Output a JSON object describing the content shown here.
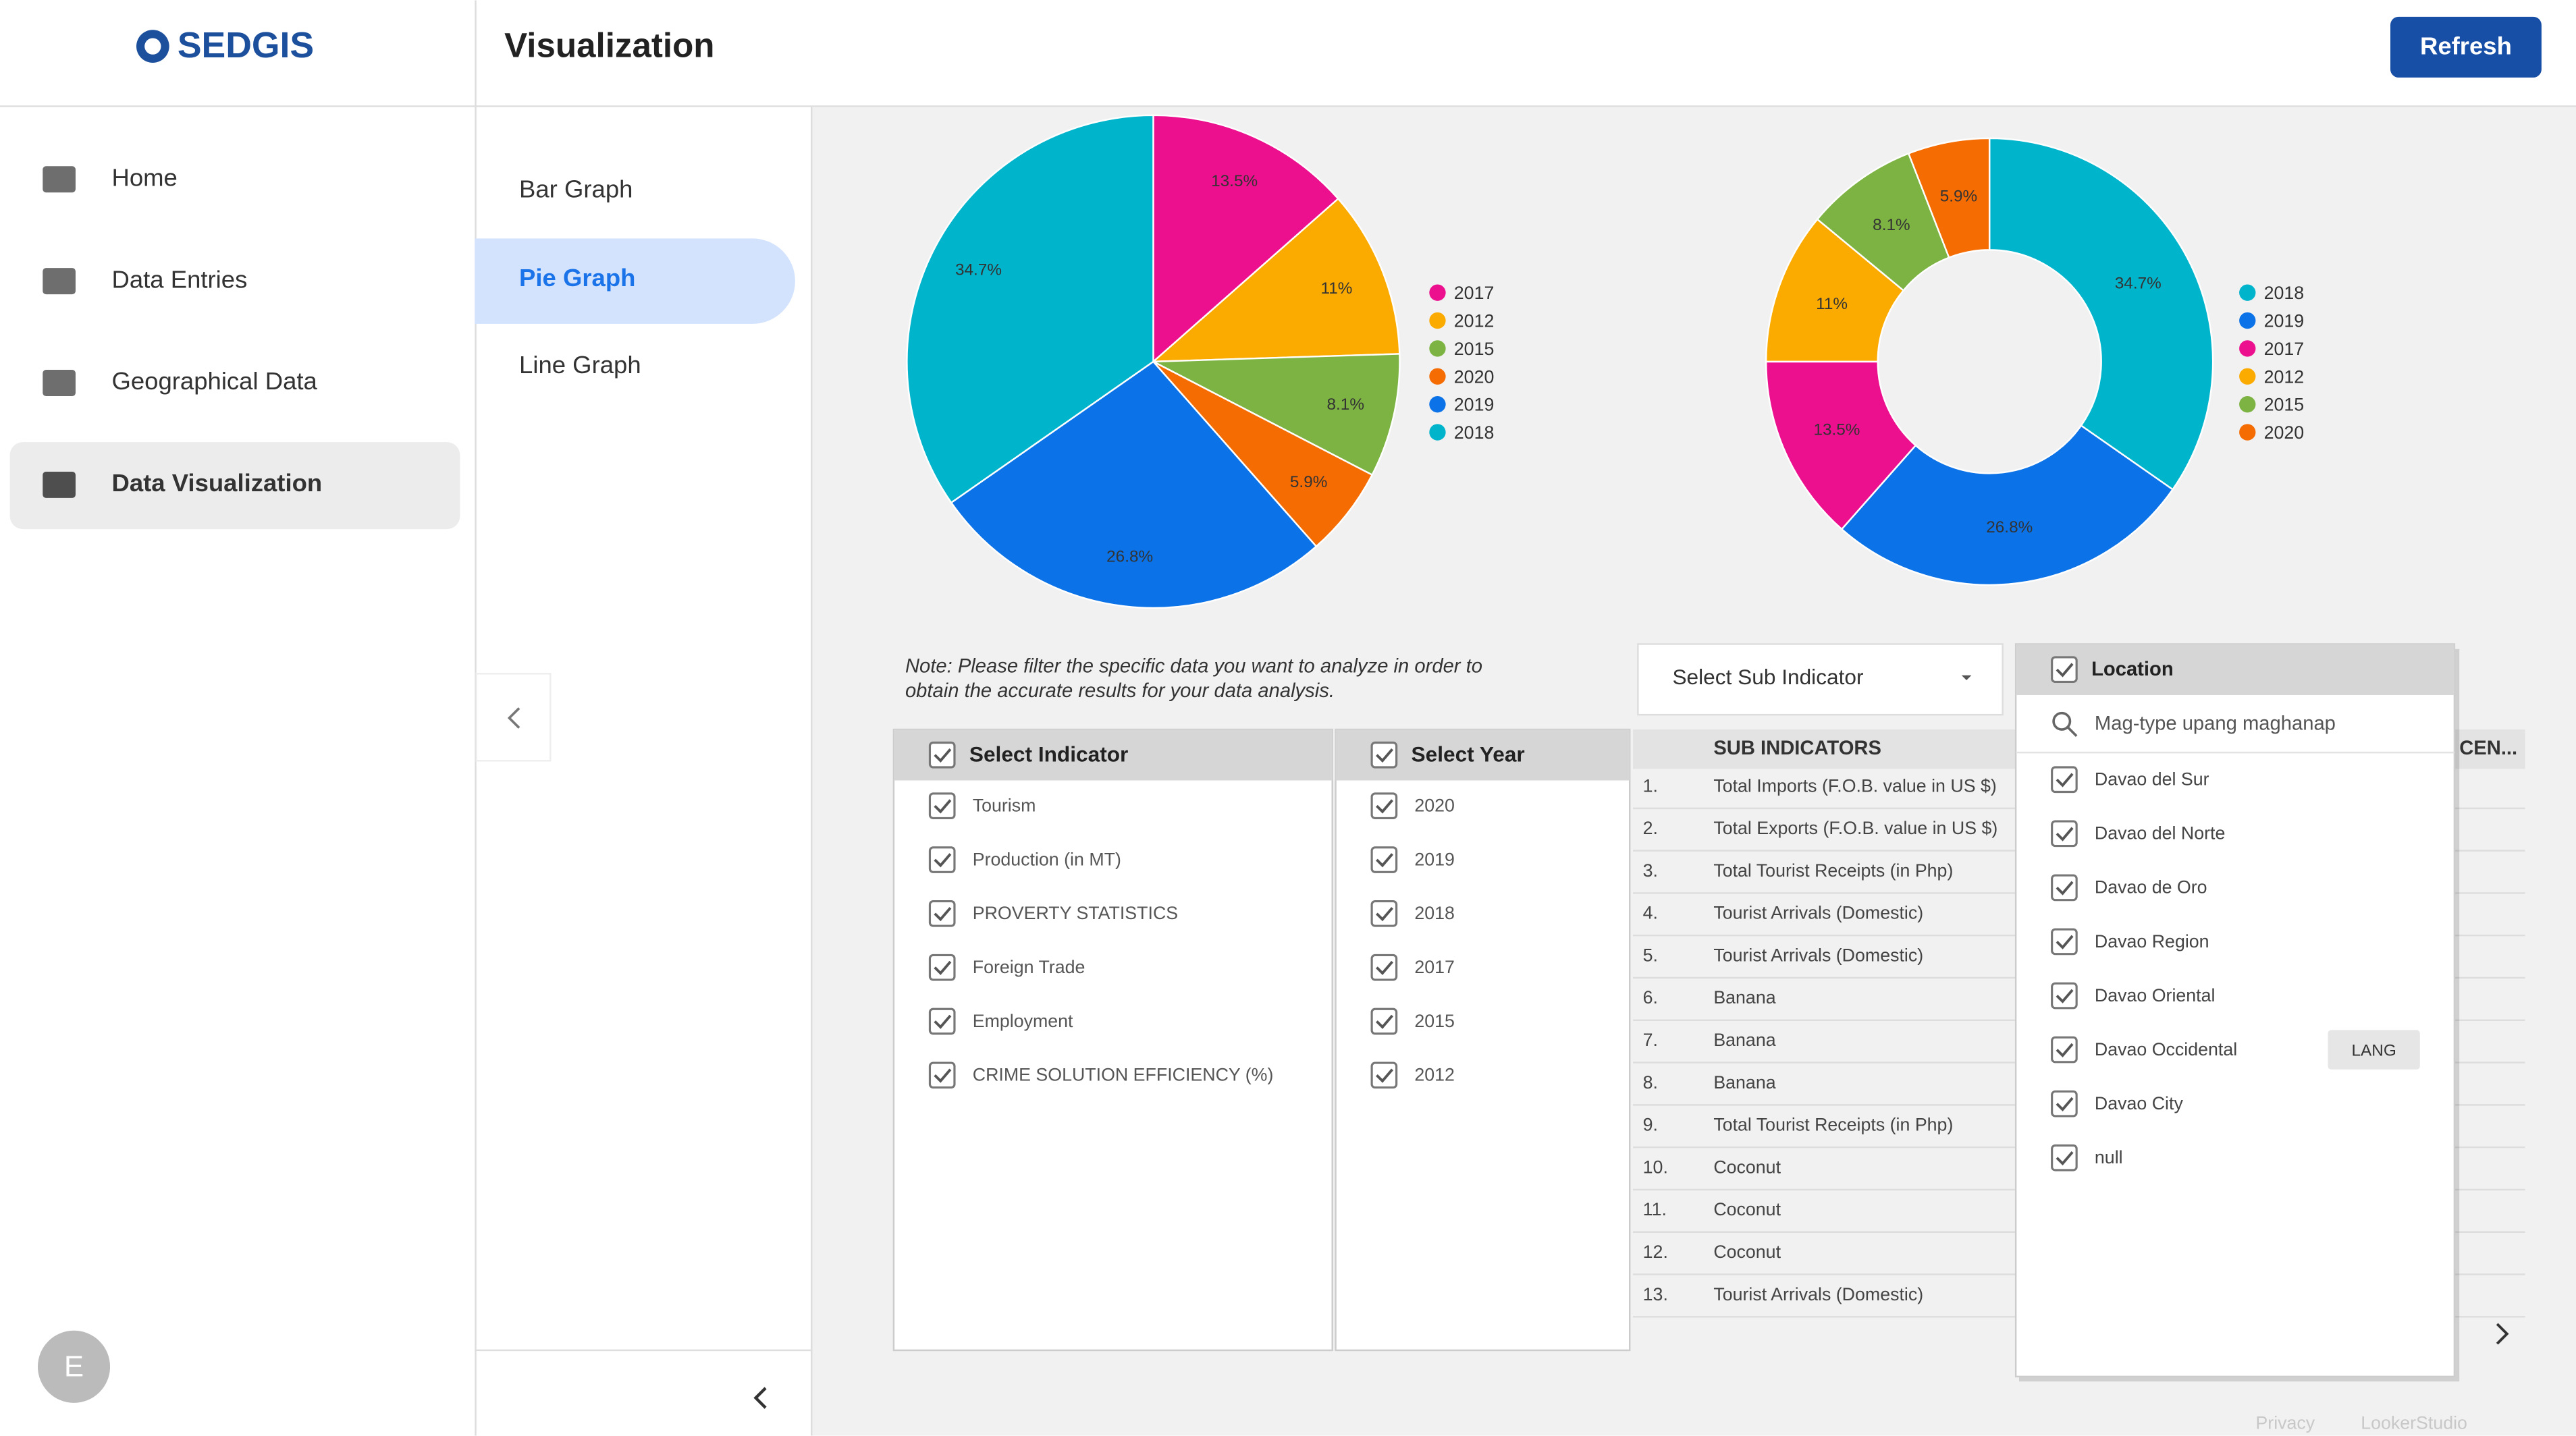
{
  "sidebar": {
    "logo": "SEDGIS",
    "nav": [
      "Home",
      "Data Entries",
      "Geographical Data",
      "Data Visualization"
    ],
    "avatar": "E"
  },
  "header": {
    "title": "Visualization",
    "refresh": "Refresh"
  },
  "tabs": [
    "Bar Graph",
    "Pie Graph",
    "Line Graph"
  ],
  "chart_data": [
    {
      "type": "pie",
      "categories": [
        "2017",
        "2012",
        "2015",
        "2020",
        "2019",
        "2018"
      ],
      "values": [
        13.5,
        11,
        8.1,
        5.9,
        26.8,
        34.7
      ],
      "value_labels": [
        "13.5%",
        "11%",
        "8.1%",
        "5.9%",
        "26.8%",
        "34.7%"
      ],
      "colors": [
        "#ec0f8e",
        "#fbab00",
        "#7cb342",
        "#f46c02",
        "#0b72e7",
        "#00b4cc"
      ],
      "legend": "right"
    },
    {
      "type": "donut",
      "categories": [
        "2018",
        "2019",
        "2017",
        "2012",
        "2015",
        "2020"
      ],
      "values": [
        34.7,
        26.8,
        13.5,
        11,
        8.1,
        5.9
      ],
      "value_labels": [
        "34.7%",
        "26.8%",
        "13.5%",
        "11%",
        "8.1%",
        "5.9%"
      ],
      "colors": [
        "#00b4cc",
        "#0b72e7",
        "#ec0f8e",
        "#fbab00",
        "#7cb342",
        "#f46c02"
      ],
      "legend": "right"
    }
  ],
  "note": [
    "Note: Please filter the specific data you want to analyze in order to",
    "obtain the accurate results for your data analysis."
  ],
  "indicator_filter": {
    "title": "Select Indicator",
    "options": [
      "Tourism",
      "Production (in MT)",
      "PROVERTY STATISTICS",
      "Foreign Trade",
      "Employment",
      "CRIME SOLUTION EFFICIENCY (%)"
    ]
  },
  "year_filter": {
    "title": "Select Year",
    "options": [
      "2020",
      "2019",
      "2018",
      "2017",
      "2015",
      "2012"
    ]
  },
  "sub_indicator_select": "Select Sub Indicator",
  "sub_indicators": {
    "header": "SUB INDICATORS",
    "partial_header": "CEN...",
    "rows": [
      [
        "1.",
        "Total Imports (F.O.B. value in US $)"
      ],
      [
        "2.",
        "Total Exports (F.O.B. value in US $)"
      ],
      [
        "3.",
        "Total Tourist Receipts (in Php)"
      ],
      [
        "4.",
        "Tourist Arrivals (Domestic)"
      ],
      [
        "5.",
        "Tourist Arrivals (Domestic)"
      ],
      [
        "6.",
        "Banana"
      ],
      [
        "7.",
        "Banana"
      ],
      [
        "8.",
        "Banana"
      ],
      [
        "9.",
        "Total Tourist Receipts (in Php)"
      ],
      [
        "10.",
        "Coconut"
      ],
      [
        "11.",
        "Coconut"
      ],
      [
        "12.",
        "Coconut"
      ],
      [
        "13.",
        "Tourist Arrivals (Domestic)"
      ]
    ]
  },
  "location_filter": {
    "title": "Location",
    "search": "Mag-type upang maghanap",
    "options": [
      "Davao del Sur",
      "Davao del Norte",
      "Davao de Oro",
      "Davao Region",
      "Davao Oriental",
      "Davao Occidental",
      "Davao City",
      "null"
    ],
    "only_button": "LANG"
  },
  "footer": [
    "Privacy",
    "LookerStudio"
  ]
}
